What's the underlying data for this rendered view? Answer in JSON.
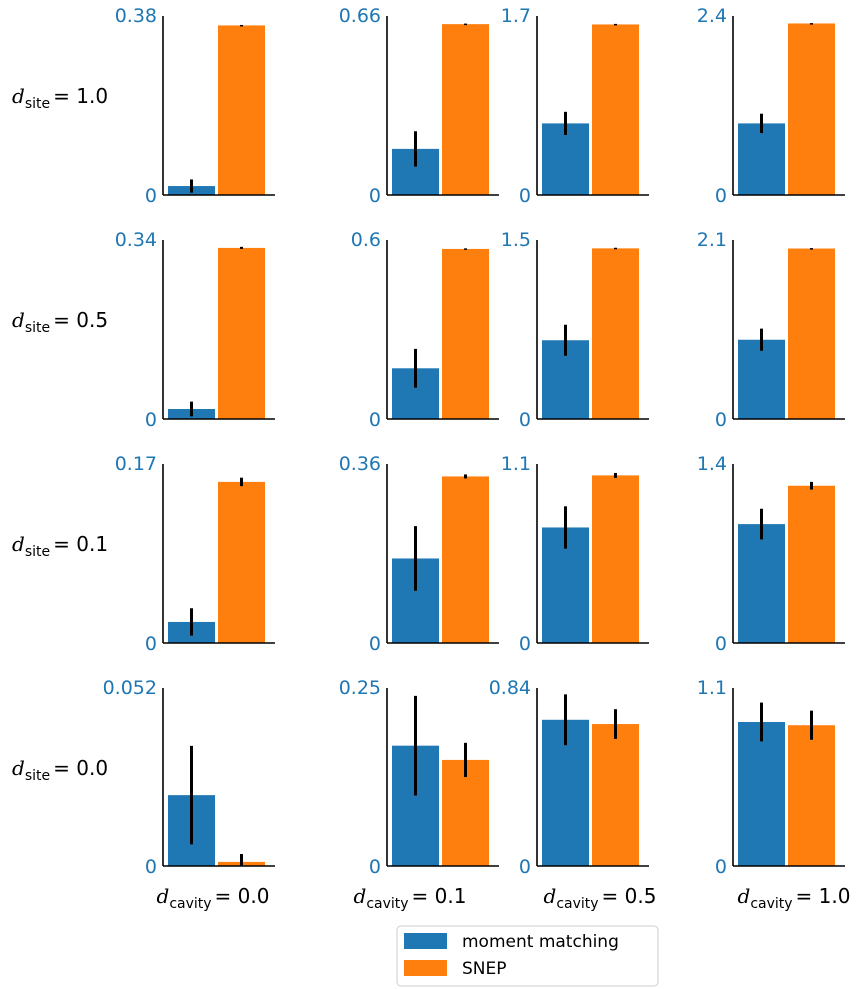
{
  "chart_data": {
    "type": "bar",
    "layout": "grid 4x4 of small bar charts, rows = d_site, columns = d_cavity",
    "colors": {
      "moment_matching": "#1f77b4",
      "snep": "#ff7f0e",
      "ytick": "#1f77b4",
      "errorbar": "#000000"
    },
    "series_names": [
      "moment matching",
      "SNEP"
    ],
    "row_labels": [
      {
        "var": "d",
        "sub": "site",
        "value": "1.0"
      },
      {
        "var": "d",
        "sub": "site",
        "value": "0.5"
      },
      {
        "var": "d",
        "sub": "site",
        "value": "0.1"
      },
      {
        "var": "d",
        "sub": "site",
        "value": "0.0"
      }
    ],
    "col_labels": [
      {
        "var": "d",
        "sub": "cavity",
        "value": "0.0"
      },
      {
        "var": "d",
        "sub": "cavity",
        "value": "0.1"
      },
      {
        "var": "d",
        "sub": "cavity",
        "value": "0.5"
      },
      {
        "var": "d",
        "sub": "cavity",
        "value": "1.0"
      }
    ],
    "legend": {
      "position": "bottom-center",
      "entries": [
        "moment matching",
        "SNEP"
      ]
    },
    "panels": [
      [
        {
          "ymax": 0.38,
          "ymin_label": "0",
          "ymax_label": "0.38",
          "values": [
            0.019,
            0.36
          ],
          "errors": [
            0.014,
            0.001
          ]
        },
        {
          "ymax": 0.66,
          "ymin_label": "0",
          "ymax_label": "0.66",
          "values": [
            0.17,
            0.63
          ],
          "errors": [
            0.065,
            0.002
          ]
        },
        {
          "ymax": 1.7,
          "ymin_label": "0",
          "ymax_label": "1.7",
          "values": [
            0.68,
            1.62
          ],
          "errors": [
            0.11,
            0.005
          ]
        },
        {
          "ymax": 2.4,
          "ymin_label": "0",
          "ymax_label": "2.4",
          "values": [
            0.96,
            2.3
          ],
          "errors": [
            0.13,
            0.005
          ]
        }
      ],
      [
        {
          "ymax": 0.34,
          "ymin_label": "0",
          "ymax_label": "0.34",
          "values": [
            0.019,
            0.325
          ],
          "errors": [
            0.014,
            0.002
          ]
        },
        {
          "ymax": 0.6,
          "ymin_label": "0",
          "ymax_label": "0.6",
          "values": [
            0.17,
            0.57
          ],
          "errors": [
            0.065,
            0.002
          ]
        },
        {
          "ymax": 1.5,
          "ymin_label": "0",
          "ymax_label": "1.5",
          "values": [
            0.66,
            1.43
          ],
          "errors": [
            0.13,
            0.005
          ]
        },
        {
          "ymax": 2.1,
          "ymin_label": "0",
          "ymax_label": "2.1",
          "values": [
            0.93,
            2.0
          ],
          "errors": [
            0.13,
            0.005
          ]
        }
      ],
      [
        {
          "ymax": 0.17,
          "ymin_label": "0",
          "ymax_label": "0.17",
          "values": [
            0.02,
            0.153
          ],
          "errors": [
            0.013,
            0.004
          ]
        },
        {
          "ymax": 0.36,
          "ymin_label": "0",
          "ymax_label": "0.36",
          "values": [
            0.17,
            0.335
          ],
          "errors": [
            0.065,
            0.004
          ]
        },
        {
          "ymax": 1.1,
          "ymin_label": "0",
          "ymax_label": "1.1",
          "values": [
            0.71,
            1.03
          ],
          "errors": [
            0.13,
            0.015
          ]
        },
        {
          "ymax": 1.4,
          "ymin_label": "0",
          "ymax_label": "1.4",
          "values": [
            0.93,
            1.23
          ],
          "errors": [
            0.12,
            0.03
          ]
        }
      ],
      [
        {
          "ymax": 0.052,
          "ymin_label": "0",
          "ymax_label": "0.052",
          "values": [
            0.0207,
            0.0012
          ],
          "errors": [
            0.0144,
            0.0023
          ]
        },
        {
          "ymax": 0.25,
          "ymin_label": "0",
          "ymax_label": "0.25",
          "values": [
            0.169,
            0.149
          ],
          "errors": [
            0.07,
            0.024
          ]
        },
        {
          "ymax": 0.84,
          "ymin_label": "0",
          "ymax_label": "0.84",
          "values": [
            0.69,
            0.67
          ],
          "errors": [
            0.12,
            0.07
          ]
        },
        {
          "ymax": 1.1,
          "ymin_label": "0",
          "ymax_label": "1.1",
          "values": [
            0.89,
            0.87
          ],
          "errors": [
            0.12,
            0.09
          ]
        }
      ]
    ]
  }
}
